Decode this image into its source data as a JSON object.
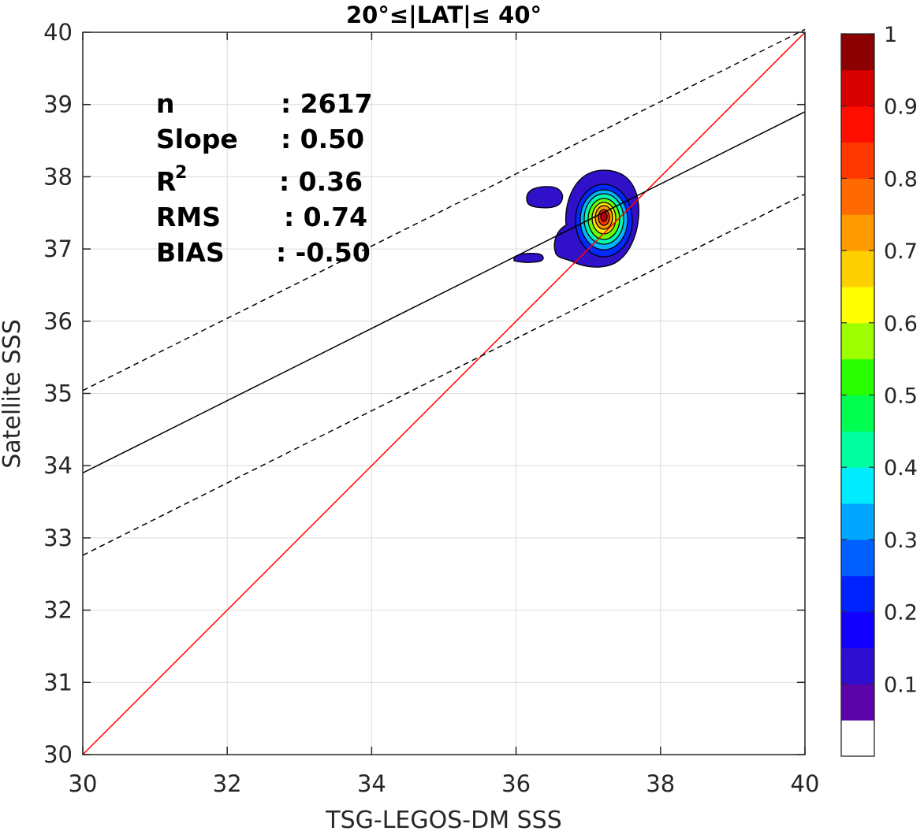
{
  "chart_data": {
    "type": "contour_scatter",
    "title": "20°≤|LAT|≤ 40°",
    "xlabel": "TSG-LEGOS-DM SSS",
    "ylabel": "Satellite SSS",
    "xlim": [
      30,
      40
    ],
    "ylim": [
      30,
      40
    ],
    "xticks": [
      "30",
      "32",
      "34",
      "36",
      "38",
      "40"
    ],
    "yticks": [
      "30",
      "31",
      "32",
      "33",
      "34",
      "35",
      "36",
      "37",
      "38",
      "39",
      "40"
    ],
    "grid": true,
    "stats": {
      "n_label": "n",
      "n_value": ": 2617",
      "slope_label": "Slope",
      "slope_value": ": 0.50",
      "r2_label": "R",
      "r2_sup": "2",
      "r2_value": ": 0.36",
      "rms_label": "RMS",
      "rms_value": ": 0.74",
      "bias_label": "BIAS",
      "bias_value": ": -0.50"
    },
    "lines": [
      {
        "id": "one-to-one",
        "color": "#ff0000",
        "style": "solid",
        "x": [
          30,
          40
        ],
        "y": [
          30,
          40
        ]
      },
      {
        "id": "regression",
        "color": "#000000",
        "style": "solid",
        "x": [
          30,
          40
        ],
        "y": [
          33.9,
          38.9
        ]
      },
      {
        "id": "upper-bound",
        "color": "#000000",
        "style": "dashed",
        "x": [
          30,
          40
        ],
        "y": [
          35.04,
          40.04
        ]
      },
      {
        "id": "lower-bound",
        "color": "#000000",
        "style": "dashed",
        "x": [
          30,
          40
        ],
        "y": [
          32.76,
          37.76
        ]
      }
    ],
    "density_peak": {
      "x": 37.22,
      "y": 37.47
    },
    "colorbar": {
      "ticks": [
        "0.1",
        "0.2",
        "0.3",
        "0.4",
        "0.5",
        "0.6",
        "0.7",
        "0.8",
        "0.9",
        "1"
      ],
      "range": [
        0,
        1
      ],
      "colors": [
        "#ffffff",
        "#5a04aa",
        "#2e0ecf",
        "#1200ff",
        "#0022ff",
        "#0060ff",
        "#00a6ff",
        "#00ecff",
        "#00ffa0",
        "#00ff4e",
        "#2aff00",
        "#9eff00",
        "#ffff00",
        "#ffd000",
        "#ff9a00",
        "#ff6a00",
        "#ff3800",
        "#ff0d00",
        "#d80000",
        "#8b0000"
      ]
    }
  }
}
